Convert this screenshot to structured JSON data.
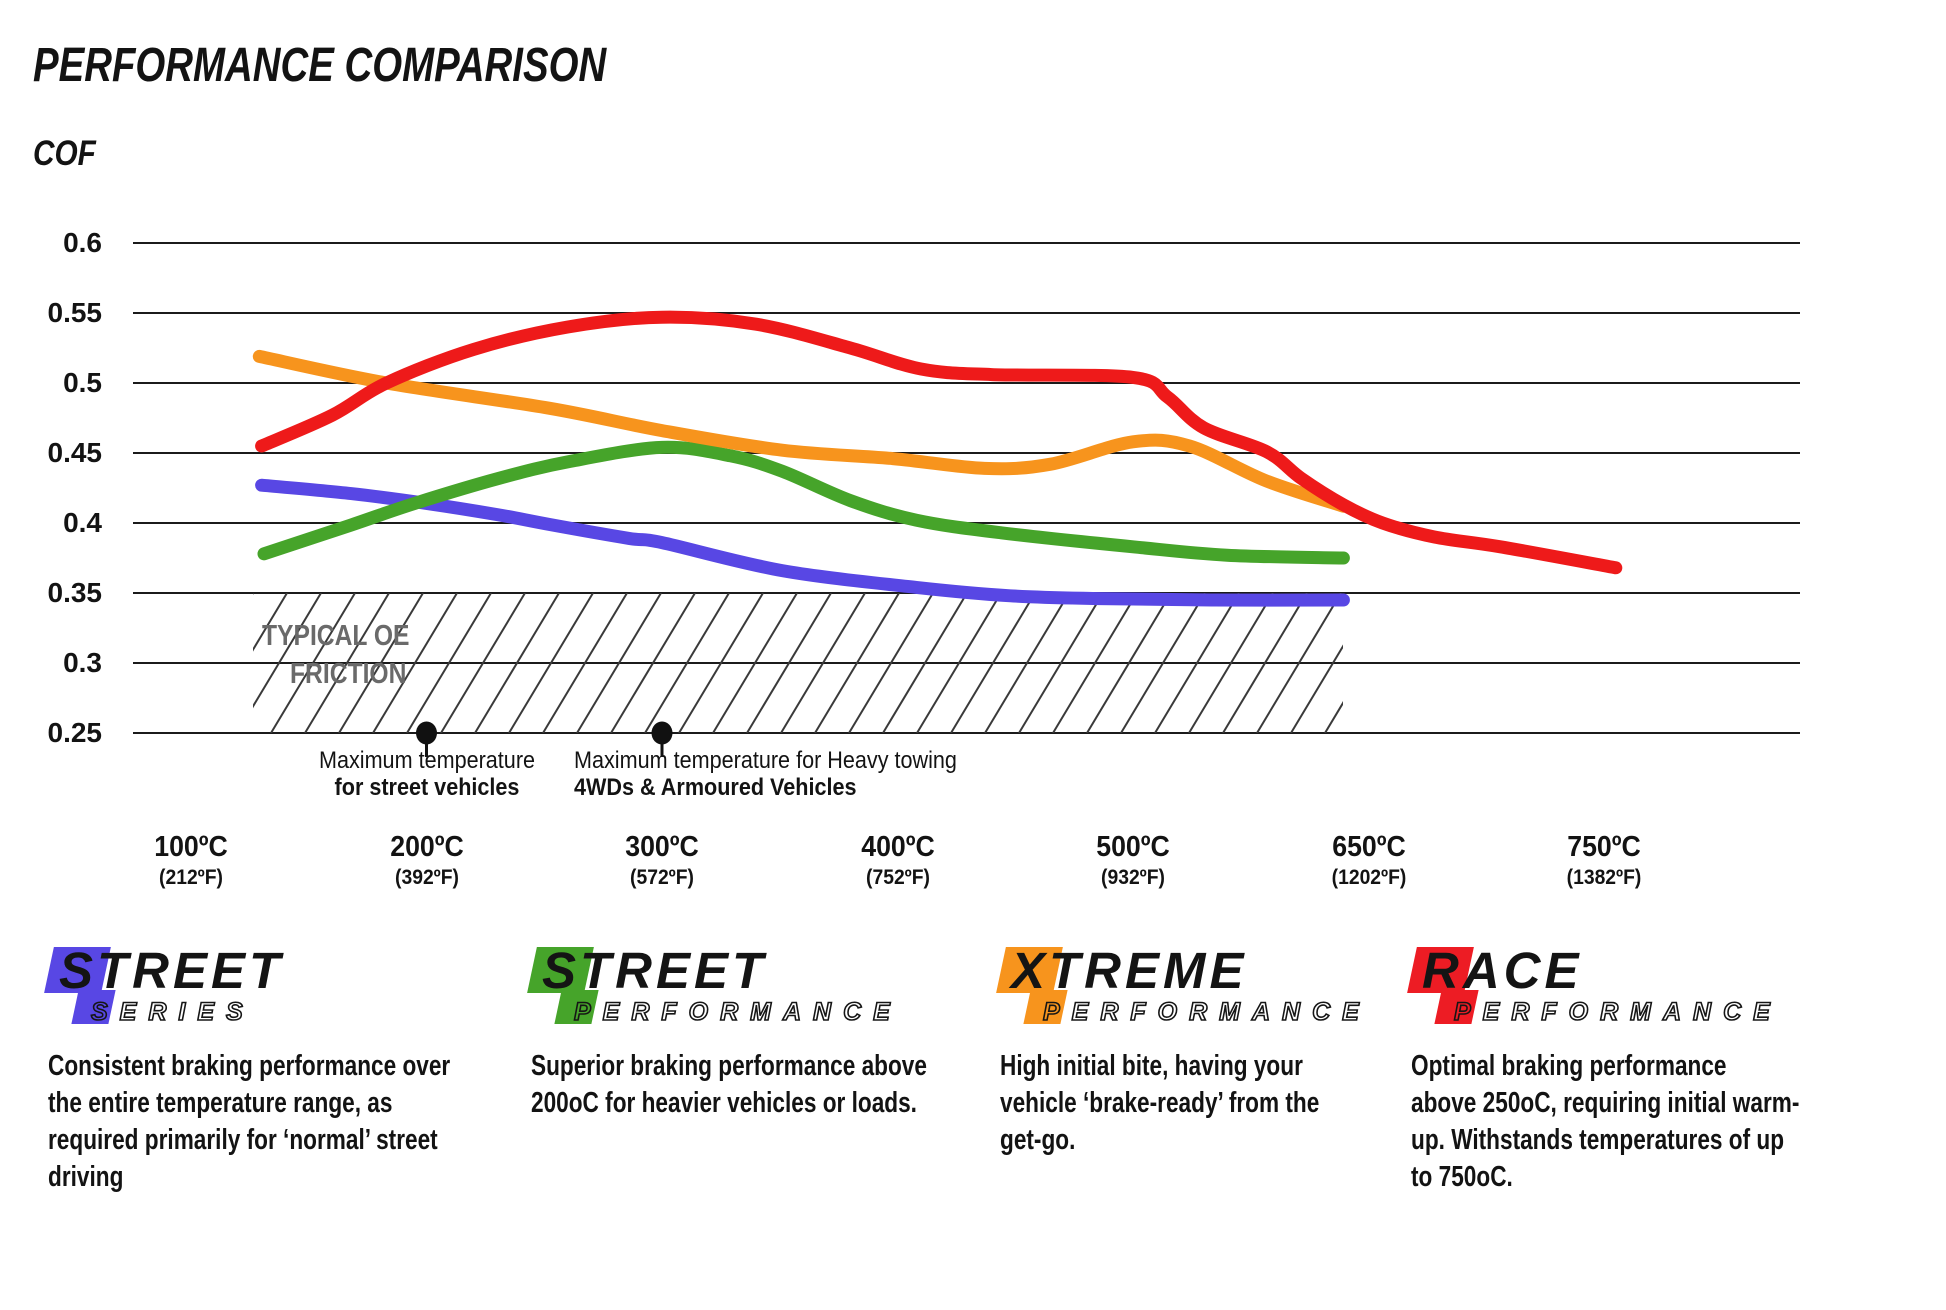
{
  "chart_data": {
    "type": "line",
    "title": "PERFORMANCE COMPARISON",
    "ylabel": "COF",
    "grid": true,
    "y_axis": {
      "min": 0.25,
      "max": 0.6,
      "ticks": [
        0.6,
        0.55,
        0.5,
        0.45,
        0.4,
        0.35,
        0.3,
        0.25
      ],
      "labels": [
        "0.6",
        "0.55",
        "0.5",
        "0.45",
        "0.4",
        "0.35",
        "0.3",
        "0.25"
      ]
    },
    "x_axis": {
      "unit": "C",
      "ticks": [
        {
          "t": 100,
          "label": "100ºC",
          "flabel": "(212ºF)"
        },
        {
          "t": 200,
          "label": "200ºC",
          "flabel": "(392ºF)"
        },
        {
          "t": 300,
          "label": "300ºC",
          "flabel": "(572ºF)"
        },
        {
          "t": 400,
          "label": "400ºC",
          "flabel": "(752ºF)"
        },
        {
          "t": 500,
          "label": "500ºC",
          "flabel": "(932ºF)"
        },
        {
          "t": 650,
          "label": "650ºC",
          "flabel": "(1202ºF)"
        },
        {
          "t": 750,
          "label": "750ºC",
          "flabel": "(1382ºF)"
        }
      ]
    },
    "series": [
      {
        "id": "street-series",
        "name": "Street Series",
        "color": "#5847e4",
        "points": [
          [
            130,
            0.427
          ],
          [
            168,
            0.421
          ],
          [
            200,
            0.414
          ],
          [
            230,
            0.406
          ],
          [
            252,
            0.399
          ],
          [
            286,
            0.389
          ],
          [
            300,
            0.386
          ],
          [
            351,
            0.366
          ],
          [
            408,
            0.354
          ],
          [
            448,
            0.348
          ],
          [
            486,
            0.346
          ],
          [
            550,
            0.345
          ],
          [
            634,
            0.345
          ]
        ]
      },
      {
        "id": "street-performance",
        "name": "Street Performance",
        "color": "#46a42a",
        "points": [
          [
            131,
            0.378
          ],
          [
            167,
            0.398
          ],
          [
            195,
            0.414
          ],
          [
            231,
            0.432
          ],
          [
            261,
            0.444
          ],
          [
            300,
            0.454
          ],
          [
            329,
            0.448
          ],
          [
            351,
            0.437
          ],
          [
            380,
            0.416
          ],
          [
            408,
            0.402
          ],
          [
            444,
            0.393
          ],
          [
            500,
            0.383
          ],
          [
            560,
            0.377
          ],
          [
            634,
            0.375
          ]
        ]
      },
      {
        "id": "xtreme-performance",
        "name": "Xtreme Performance",
        "color": "#f7941d",
        "points": [
          [
            129,
            0.519
          ],
          [
            183,
            0.5
          ],
          [
            252,
            0.482
          ],
          [
            300,
            0.466
          ],
          [
            351,
            0.452
          ],
          [
            398,
            0.446
          ],
          [
            437,
            0.439
          ],
          [
            465,
            0.442
          ],
          [
            500,
            0.458
          ],
          [
            536,
            0.455
          ],
          [
            585,
            0.43
          ],
          [
            634,
            0.412
          ]
        ]
      },
      {
        "id": "race-performance",
        "name": "Race Performance",
        "color": "#ee1a1a",
        "points": [
          [
            130,
            0.455
          ],
          [
            160,
            0.477
          ],
          [
            183,
            0.5
          ],
          [
            220,
            0.524
          ],
          [
            260,
            0.54
          ],
          [
            300,
            0.547
          ],
          [
            340,
            0.542
          ],
          [
            380,
            0.525
          ],
          [
            410,
            0.51
          ],
          [
            440,
            0.506
          ],
          [
            500,
            0.504
          ],
          [
            522,
            0.49
          ],
          [
            545,
            0.468
          ],
          [
            585,
            0.451
          ],
          [
            607,
            0.432
          ],
          [
            634,
            0.413
          ],
          [
            656,
            0.4
          ],
          [
            678,
            0.39
          ],
          [
            706,
            0.383
          ],
          [
            755,
            0.368
          ]
        ]
      }
    ],
    "oe_band": {
      "label_line1": "TYPICAL OE",
      "label_line2": "FRICTION",
      "cof_min": 0.25,
      "cof_max": 0.35
    },
    "annotations": [
      {
        "dot_t": 200,
        "line1": "Maximum temperature",
        "line2": "for street vehicles"
      },
      {
        "dot_t": 300,
        "line1": "Maximum temperature for Heavy towing",
        "line2": "4WDs & Armoured Vehicles"
      }
    ]
  },
  "legend": {
    "items": [
      {
        "main": "STREET",
        "sub": "SERIES",
        "color": "#5847e4",
        "desc_lines": [
          "Consistent braking performance over",
          "the entire temperature range, as",
          "required primarily for ‘normal’ street",
          "driving"
        ]
      },
      {
        "main": "STREET",
        "sub": "PERFORMANCE",
        "color": "#46a42a",
        "desc_lines": [
          "Superior braking performance above",
          "200oC for heavier vehicles or loads."
        ]
      },
      {
        "main": "XTREME",
        "sub": "PERFORMANCE",
        "color": "#f7941d",
        "desc_lines": [
          "High initial bite, having your",
          "vehicle ‘brake-ready’ from the",
          "get-go."
        ]
      },
      {
        "main": "RACE",
        "sub": "PERFORMANCE",
        "color": "#ed1c24",
        "desc_lines": [
          "Optimal braking performance",
          "above 250oC, requiring initial warm-",
          "up. Withstands temperatures of up",
          "to 750oC."
        ]
      }
    ]
  }
}
